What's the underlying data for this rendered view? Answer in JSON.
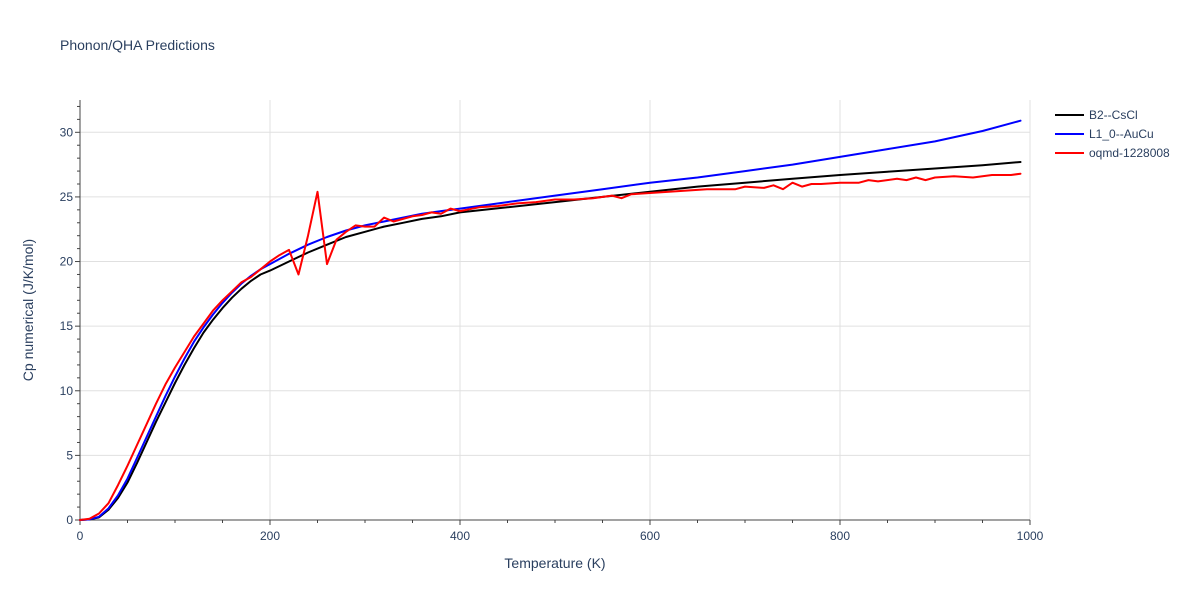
{
  "chart_data": {
    "type": "line",
    "title": "Phonon/QHA Predictions",
    "xlabel": "Temperature (K)",
    "ylabel": "Cp numerical (J/K/mol)",
    "xlim": [
      0,
      1000
    ],
    "ylim": [
      0,
      32.5
    ],
    "x_ticks": [
      0,
      200,
      400,
      600,
      800,
      1000
    ],
    "y_ticks": [
      0,
      5,
      10,
      15,
      20,
      25,
      30
    ],
    "grid": true,
    "legend_position": "top-right",
    "series": [
      {
        "name": "B2--CsCl",
        "color": "#000000",
        "x": [
          0,
          10,
          20,
          30,
          40,
          50,
          60,
          70,
          80,
          90,
          100,
          110,
          120,
          130,
          140,
          150,
          160,
          170,
          180,
          190,
          200,
          220,
          240,
          260,
          280,
          300,
          320,
          340,
          360,
          380,
          400,
          450,
          500,
          550,
          600,
          650,
          700,
          750,
          800,
          850,
          900,
          950,
          990
        ],
        "y": [
          0,
          0.05,
          0.2,
          0.8,
          1.7,
          2.9,
          4.4,
          6.0,
          7.6,
          9.1,
          10.6,
          12.0,
          13.3,
          14.5,
          15.5,
          16.4,
          17.2,
          17.9,
          18.5,
          19.0,
          19.3,
          20.0,
          20.7,
          21.3,
          21.9,
          22.3,
          22.7,
          23.0,
          23.3,
          23.5,
          23.8,
          24.2,
          24.6,
          25.0,
          25.4,
          25.8,
          26.1,
          26.4,
          26.7,
          26.95,
          27.2,
          27.45,
          27.7
        ]
      },
      {
        "name": "L1_0--AuCu",
        "color": "#0000ff",
        "x": [
          0,
          10,
          20,
          30,
          40,
          50,
          60,
          70,
          80,
          90,
          100,
          110,
          120,
          130,
          140,
          150,
          160,
          170,
          180,
          190,
          200,
          220,
          240,
          260,
          280,
          300,
          320,
          340,
          360,
          380,
          400,
          450,
          500,
          550,
          600,
          650,
          700,
          750,
          800,
          850,
          900,
          950,
          990
        ],
        "y": [
          0,
          0.05,
          0.25,
          0.9,
          1.9,
          3.2,
          4.8,
          6.4,
          8.0,
          9.6,
          11.1,
          12.5,
          13.8,
          14.9,
          15.9,
          16.8,
          17.6,
          18.3,
          18.9,
          19.4,
          19.8,
          20.6,
          21.3,
          21.9,
          22.4,
          22.8,
          23.1,
          23.4,
          23.7,
          23.9,
          24.1,
          24.6,
          25.1,
          25.6,
          26.1,
          26.5,
          27.0,
          27.5,
          28.1,
          28.7,
          29.3,
          30.1,
          30.9
        ]
      },
      {
        "name": "oqmd-1228008",
        "color": "#ff0000",
        "x": [
          0,
          10,
          20,
          30,
          40,
          50,
          60,
          70,
          80,
          90,
          100,
          110,
          120,
          130,
          140,
          150,
          160,
          170,
          180,
          190,
          200,
          210,
          220,
          230,
          240,
          250,
          260,
          270,
          280,
          290,
          300,
          310,
          320,
          330,
          340,
          350,
          360,
          370,
          380,
          390,
          400,
          420,
          440,
          460,
          480,
          500,
          520,
          540,
          560,
          570,
          580,
          600,
          620,
          640,
          660,
          680,
          690,
          700,
          720,
          730,
          740,
          750,
          760,
          770,
          780,
          800,
          820,
          830,
          840,
          860,
          870,
          880,
          890,
          900,
          920,
          940,
          960,
          980,
          990
        ],
        "y": [
          0,
          0.1,
          0.5,
          1.3,
          2.7,
          4.2,
          5.8,
          7.4,
          9.0,
          10.5,
          11.8,
          13.0,
          14.2,
          15.2,
          16.2,
          17.0,
          17.7,
          18.4,
          18.8,
          19.4,
          20.0,
          20.5,
          20.9,
          19.0,
          22.0,
          25.4,
          19.8,
          21.7,
          22.3,
          22.8,
          22.7,
          22.7,
          23.4,
          23.1,
          23.3,
          23.5,
          23.6,
          23.8,
          23.7,
          24.1,
          23.9,
          24.2,
          24.3,
          24.5,
          24.6,
          24.8,
          24.8,
          24.9,
          25.1,
          24.9,
          25.2,
          25.3,
          25.4,
          25.5,
          25.6,
          25.6,
          25.6,
          25.8,
          25.7,
          25.9,
          25.6,
          26.1,
          25.8,
          26.0,
          26.0,
          26.1,
          26.1,
          26.3,
          26.2,
          26.4,
          26.3,
          26.5,
          26.3,
          26.5,
          26.6,
          26.5,
          26.7,
          26.7,
          26.8
        ]
      }
    ]
  }
}
